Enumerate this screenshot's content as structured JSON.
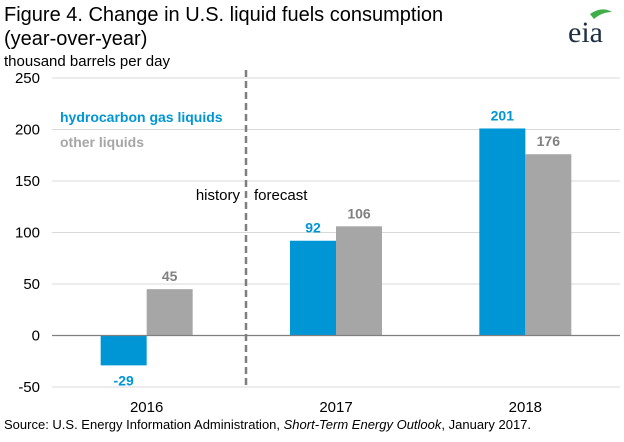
{
  "chart_data": {
    "type": "bar",
    "title_line1": "Figure 4. Change in U.S. liquid fuels consumption",
    "title_line2": "(year-over-year)",
    "ylabel": "thousand barrels per day",
    "ylim": [
      -50,
      250
    ],
    "yticks": [
      250,
      200,
      150,
      100,
      50,
      0,
      -50
    ],
    "categories": [
      "2016",
      "2017",
      "2018"
    ],
    "series": [
      {
        "name": "hydrocarbon gas liquids",
        "color": "#0096d6",
        "values": [
          -29,
          92,
          201
        ]
      },
      {
        "name": "other liquids",
        "color": "#a6a6a6",
        "values": [
          45,
          106,
          176
        ]
      }
    ],
    "divider": {
      "left_label": "history",
      "right_label": "forecast"
    },
    "legend_position": "top-left",
    "grid": true
  },
  "logo_text": "eia",
  "source": {
    "prefix": "Source: U.S. Energy Information Administration, ",
    "italic": "Short-Term Energy Outlook",
    "suffix": ", January 2017."
  },
  "colors": {
    "grid": "#d9d9d9",
    "axis": "#7f7f7f",
    "divider": "#7f7f7f",
    "logo_leaf": "#3fae49"
  }
}
